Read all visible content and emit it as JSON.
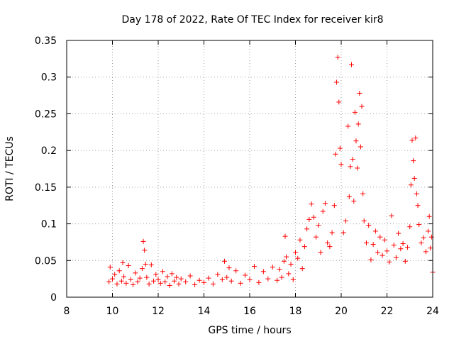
{
  "chart_data": {
    "type": "scatter",
    "title": "Day 178 of 2022, Rate Of TEC Index for receiver kir8",
    "xlabel": "GPS time / hours",
    "ylabel": "ROTI / TECUs",
    "xlim": [
      8,
      24
    ],
    "ylim": [
      0,
      0.35
    ],
    "xticks": [
      8,
      10,
      12,
      14,
      16,
      18,
      20,
      22,
      24
    ],
    "xtick_labels": [
      "8",
      "10",
      "12",
      "14",
      "16",
      "18",
      "20",
      "22",
      "24"
    ],
    "yticks": [
      0,
      0.05,
      0.1,
      0.15,
      0.2,
      0.25,
      0.3,
      0.35
    ],
    "ytick_labels": [
      "0",
      "0.05",
      "0.1",
      "0.15",
      "0.2",
      "0.25",
      "0.3",
      "0.35"
    ],
    "grid": true,
    "marker": "+",
    "series": [
      {
        "name": "ROTI",
        "color": "#ff0000",
        "x": [
          9.85,
          9.9,
          10.0,
          10.1,
          10.2,
          10.3,
          10.4,
          10.45,
          10.5,
          10.6,
          10.7,
          10.8,
          10.9,
          11.0,
          11.1,
          11.2,
          11.3,
          11.35,
          11.4,
          11.45,
          11.5,
          11.6,
          11.7,
          11.8,
          11.9,
          12.0,
          12.1,
          12.2,
          12.3,
          12.4,
          12.5,
          12.6,
          12.7,
          12.8,
          12.9,
          13.0,
          13.2,
          13.4,
          13.6,
          13.8,
          14.0,
          14.2,
          14.4,
          14.6,
          14.8,
          14.9,
          15.0,
          15.1,
          15.2,
          15.4,
          15.6,
          15.8,
          16.0,
          16.2,
          16.4,
          16.6,
          16.8,
          17.0,
          17.2,
          17.3,
          17.4,
          17.5,
          17.55,
          17.6,
          17.7,
          17.8,
          17.9,
          18.0,
          18.1,
          18.2,
          18.3,
          18.4,
          18.5,
          18.6,
          18.7,
          18.8,
          18.9,
          19.0,
          19.1,
          19.2,
          19.3,
          19.4,
          19.5,
          19.6,
          19.7,
          19.75,
          19.8,
          19.85,
          19.9,
          19.95,
          20.0,
          20.1,
          20.2,
          20.3,
          20.35,
          20.4,
          20.45,
          20.5,
          20.55,
          20.6,
          20.65,
          20.7,
          20.75,
          20.8,
          20.85,
          20.9,
          20.95,
          21.0,
          21.1,
          21.2,
          21.3,
          21.4,
          21.5,
          21.6,
          21.7,
          21.8,
          21.9,
          22.0,
          22.1,
          22.2,
          22.3,
          22.4,
          22.5,
          22.6,
          22.7,
          22.8,
          22.9,
          23.0,
          23.05,
          23.1,
          23.15,
          23.2,
          23.25,
          23.3,
          23.35,
          23.4,
          23.5,
          23.6,
          23.7,
          23.8,
          23.85,
          23.9,
          23.95,
          24.0
        ],
        "y": [
          0.021,
          0.041,
          0.025,
          0.031,
          0.018,
          0.036,
          0.022,
          0.047,
          0.028,
          0.019,
          0.043,
          0.024,
          0.017,
          0.033,
          0.021,
          0.026,
          0.039,
          0.076,
          0.064,
          0.045,
          0.027,
          0.018,
          0.044,
          0.022,
          0.031,
          0.024,
          0.019,
          0.035,
          0.021,
          0.028,
          0.016,
          0.032,
          0.022,
          0.027,
          0.018,
          0.025,
          0.021,
          0.029,
          0.017,
          0.023,
          0.02,
          0.026,
          0.018,
          0.031,
          0.024,
          0.049,
          0.027,
          0.04,
          0.022,
          0.036,
          0.019,
          0.03,
          0.024,
          0.042,
          0.02,
          0.035,
          0.025,
          0.041,
          0.023,
          0.038,
          0.027,
          0.049,
          0.083,
          0.055,
          0.032,
          0.045,
          0.024,
          0.061,
          0.053,
          0.078,
          0.039,
          0.069,
          0.093,
          0.106,
          0.127,
          0.109,
          0.082,
          0.098,
          0.061,
          0.117,
          0.128,
          0.074,
          0.069,
          0.088,
          0.125,
          0.195,
          0.293,
          0.327,
          0.266,
          0.203,
          0.181,
          0.088,
          0.104,
          0.233,
          0.137,
          0.178,
          0.317,
          0.188,
          0.131,
          0.252,
          0.213,
          0.176,
          0.236,
          0.278,
          0.205,
          0.26,
          0.141,
          0.104,
          0.074,
          0.098,
          0.051,
          0.072,
          0.09,
          0.061,
          0.082,
          0.057,
          0.078,
          0.063,
          0.048,
          0.111,
          0.071,
          0.054,
          0.087,
          0.066,
          0.073,
          0.049,
          0.068,
          0.096,
          0.153,
          0.214,
          0.186,
          0.162,
          0.217,
          0.141,
          0.125,
          0.099,
          0.074,
          0.081,
          0.062,
          0.09,
          0.11,
          0.067,
          0.082,
          0.034
        ]
      }
    ]
  }
}
